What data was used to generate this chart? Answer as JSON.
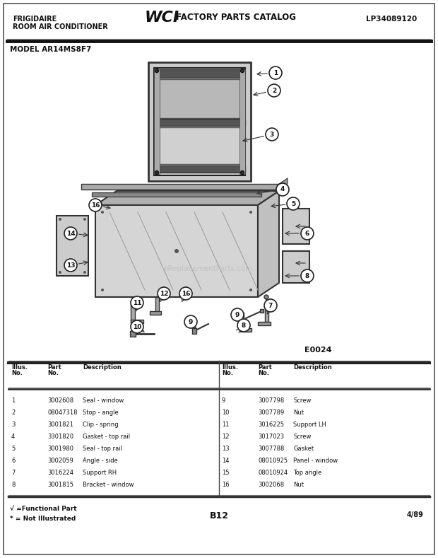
{
  "title_left1": "FRIGIDAIRE",
  "title_left2": "ROOM AIR CONDITIONER",
  "title_right": "LP34089120",
  "model": "MODEL AR14MS8F7",
  "diagram_code": "E0024",
  "page_code": "B12",
  "page_num": "4/89",
  "watermark": "eReplacementParts.com",
  "footnote1": "√ =Functional Part",
  "footnote2": "* = Not Illustrated",
  "parts_left": [
    [
      "1",
      "3002608",
      "Seal - window"
    ],
    [
      "2",
      "08047318",
      "Stop - angle"
    ],
    [
      "3",
      "3001821",
      "Clip - spring"
    ],
    [
      "4",
      "3301820",
      "Gasket - top rail"
    ],
    [
      "5",
      "3001980",
      "Seal - top rail"
    ],
    [
      "6",
      "3002059",
      "Angle - side"
    ],
    [
      "7",
      "3016224",
      "Support RH"
    ],
    [
      "8",
      "3001815",
      "Bracket - window"
    ]
  ],
  "parts_right": [
    [
      "9",
      "3007798",
      "Screw"
    ],
    [
      "10",
      "3007789",
      "Nut"
    ],
    [
      "11",
      "3016225",
      "Support LH"
    ],
    [
      "12",
      "3017023",
      "Screw"
    ],
    [
      "13",
      "3007788",
      "Gasket"
    ],
    [
      "14",
      "08010925",
      "Panel - window"
    ],
    [
      "15",
      "08010924",
      "Top angle"
    ],
    [
      "16",
      "3002068",
      "Nut"
    ]
  ],
  "bg_color": "#ffffff",
  "text_color": "#000000",
  "border_color": "#222222"
}
